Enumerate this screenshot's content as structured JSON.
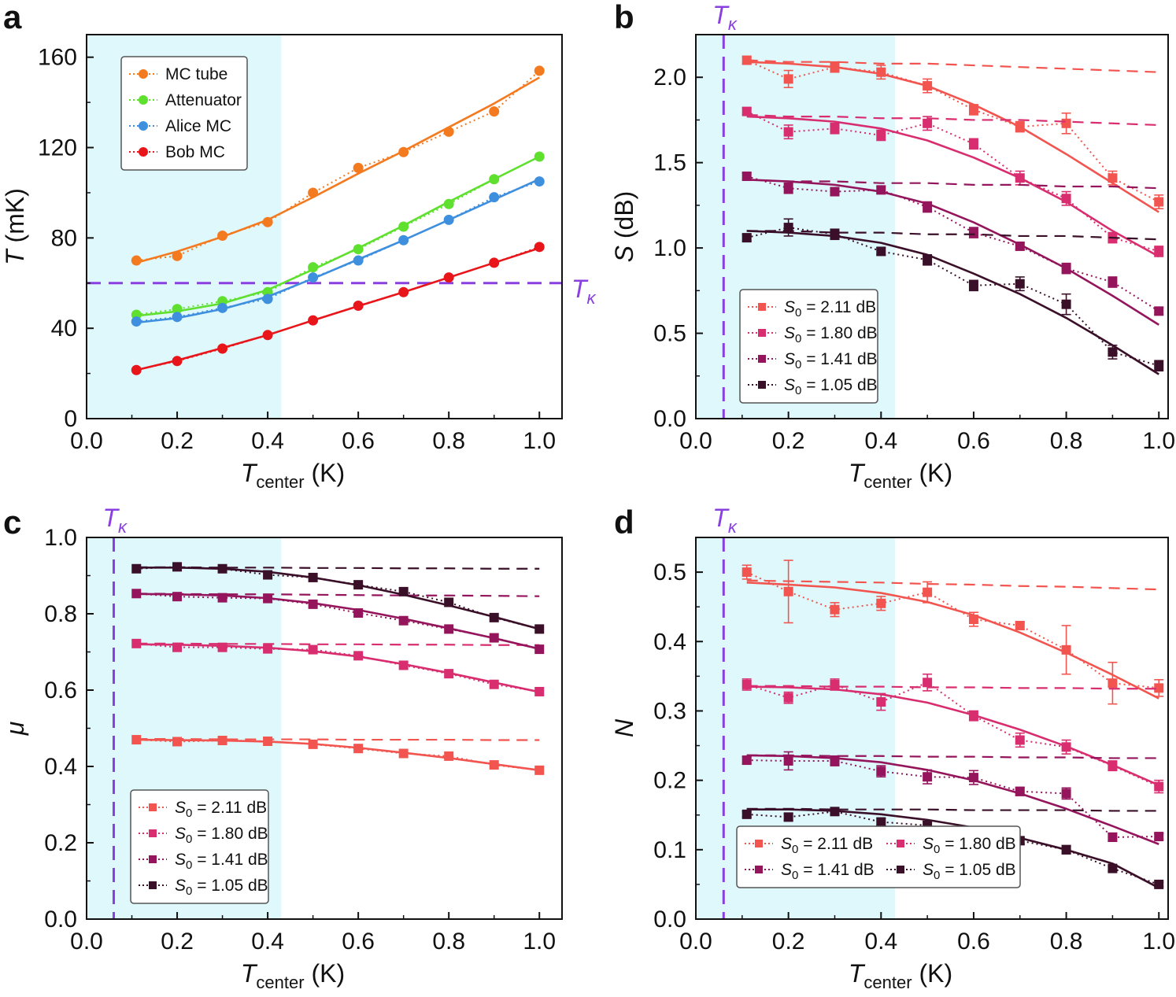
{
  "colors": {
    "shade": "#dff8fc",
    "tk_line": "#8a3fe0",
    "orange": "#f47a20",
    "green": "#5fe02f",
    "blue": "#3f8fdf",
    "red": "#e8161a",
    "s211": "#f2554f",
    "s180": "#d82d6e",
    "s141": "#94155c",
    "s105": "#3a0f28"
  },
  "tk_label": "T",
  "tk_sub": "κ",
  "chart_data": [
    {
      "id": "a",
      "type": "line",
      "panel_label": "a",
      "xlabel": "T",
      "xlabel_sub": "center",
      "xlabel_unit": " (K)",
      "ylabel": "T",
      "ylabel_unit": " (mK)",
      "xlim": [
        0,
        1.05
      ],
      "ylim": [
        0,
        170
      ],
      "xticks": [
        "0.0",
        "0.2",
        "0.4",
        "0.6",
        "0.8",
        "1.0"
      ],
      "xtick_values": [
        0,
        0.2,
        0.4,
        0.6,
        0.8,
        1.0
      ],
      "yticks": [
        "0",
        "40",
        "80",
        "120",
        "160"
      ],
      "ytick_values": [
        0,
        40,
        80,
        120,
        160
      ],
      "shade_x": [
        0,
        0.43
      ],
      "tk_orientation": "horizontal",
      "tk_value": 60,
      "x": [
        0.11,
        0.2,
        0.3,
        0.4,
        0.5,
        0.6,
        0.7,
        0.8,
        0.9,
        1.0
      ],
      "series": [
        {
          "name": "MC tube",
          "color_key": "orange",
          "marker": "circle",
          "values": [
            70,
            72,
            81,
            87,
            100,
            111,
            118,
            127,
            136,
            154
          ],
          "fit": [
            69,
            74,
            80.5,
            88,
            98,
            108.5,
            118.5,
            129,
            139.5,
            151
          ]
        },
        {
          "name": "Attenuator",
          "color_key": "green",
          "marker": "circle",
          "values": [
            46,
            48.5,
            52,
            56,
            67,
            75,
            85,
            95,
            106,
            116
          ],
          "fit": [
            45.5,
            47.5,
            51,
            57,
            66,
            75.5,
            85.5,
            96,
            106,
            116
          ]
        },
        {
          "name": "Alice MC",
          "color_key": "blue",
          "marker": "circle",
          "values": [
            43,
            45,
            49,
            53,
            62.5,
            70,
            79,
            88,
            98,
            105
          ],
          "fit": [
            42.5,
            44.5,
            48.5,
            54,
            62,
            70.5,
            79,
            88,
            97,
            106
          ]
        },
        {
          "name": "Bob MC",
          "color_key": "red",
          "marker": "circle",
          "values": [
            21.5,
            25.5,
            31,
            37,
            43.5,
            50,
            56,
            62.5,
            69,
            76
          ],
          "fit": [
            21.5,
            25.8,
            31.3,
            37,
            43.5,
            49.8,
            56,
            62.5,
            69,
            75.5
          ]
        }
      ],
      "legend": {
        "placement": "top-left",
        "columns": 1,
        "labels": [
          "MC tube",
          "Attenuator",
          "Alice MC",
          "Bob MC"
        ]
      }
    },
    {
      "id": "b",
      "type": "line",
      "panel_label": "b",
      "xlabel": "T",
      "xlabel_sub": "center",
      "xlabel_unit": " (K)",
      "ylabel": "S",
      "ylabel_unit": " (dB)",
      "xlim": [
        0,
        1.02
      ],
      "ylim": [
        0,
        2.25
      ],
      "xticks": [
        "0.0",
        "0.2",
        "0.4",
        "0.6",
        "0.8",
        "1.0"
      ],
      "xtick_values": [
        0,
        0.2,
        0.4,
        0.6,
        0.8,
        1.0
      ],
      "yticks": [
        "0.0",
        "0.5",
        "1.0",
        "1.5",
        "2.0"
      ],
      "ytick_values": [
        0,
        0.5,
        1.0,
        1.5,
        2.0
      ],
      "shade_x": [
        0,
        0.43
      ],
      "tk_orientation": "vertical",
      "tk_value": 0.06,
      "x": [
        0.11,
        0.2,
        0.3,
        0.4,
        0.5,
        0.6,
        0.7,
        0.8,
        0.9,
        1.0
      ],
      "series": [
        {
          "name": "S0 = 2.11 dB",
          "color_key": "s211",
          "marker": "square",
          "values": [
            2.1,
            1.99,
            2.06,
            2.03,
            1.95,
            1.81,
            1.71,
            1.73,
            1.41,
            1.27
          ],
          "errors": [
            0.02,
            0.05,
            0.03,
            0.04,
            0.04,
            0.03,
            0.03,
            0.06,
            0.04,
            0.04
          ],
          "fit": [
            2.09,
            2.08,
            2.06,
            2.02,
            1.95,
            1.84,
            1.71,
            1.55,
            1.38,
            1.21
          ],
          "dashed": [
            2.1,
            2.09,
            2.09,
            2.08,
            2.08,
            2.07,
            2.06,
            2.05,
            2.04,
            2.03
          ]
        },
        {
          "name": "S0 = 1.80 dB",
          "color_key": "s180",
          "marker": "square",
          "values": [
            1.8,
            1.68,
            1.7,
            1.66,
            1.73,
            1.61,
            1.41,
            1.29,
            1.06,
            0.98
          ],
          "errors": [
            0.02,
            0.04,
            0.03,
            0.03,
            0.04,
            0.03,
            0.04,
            0.04,
            0.03,
            0.03
          ],
          "fit": [
            1.77,
            1.76,
            1.74,
            1.7,
            1.63,
            1.53,
            1.41,
            1.27,
            1.1,
            0.95
          ],
          "dashed": [
            1.78,
            1.77,
            1.77,
            1.76,
            1.76,
            1.75,
            1.75,
            1.74,
            1.73,
            1.72
          ]
        },
        {
          "name": "S0 = 1.41 dB",
          "color_key": "s141",
          "marker": "square",
          "values": [
            1.42,
            1.35,
            1.33,
            1.34,
            1.24,
            1.09,
            1.01,
            0.88,
            0.8,
            0.63
          ],
          "errors": [
            0.02,
            0.03,
            0.02,
            0.02,
            0.03,
            0.03,
            0.02,
            0.03,
            0.03,
            0.02
          ],
          "fit": [
            1.4,
            1.39,
            1.37,
            1.33,
            1.26,
            1.15,
            1.02,
            0.88,
            0.72,
            0.55
          ],
          "dashed": [
            1.4,
            1.39,
            1.39,
            1.38,
            1.38,
            1.37,
            1.37,
            1.36,
            1.36,
            1.35
          ]
        },
        {
          "name": "S0 = 1.05 dB",
          "color_key": "s105",
          "marker": "square",
          "values": [
            1.06,
            1.12,
            1.08,
            0.98,
            0.93,
            0.78,
            0.79,
            0.67,
            0.39,
            0.31
          ],
          "errors": [
            0.02,
            0.05,
            0.03,
            0.02,
            0.03,
            0.03,
            0.04,
            0.06,
            0.04,
            0.03
          ],
          "fit": [
            1.1,
            1.09,
            1.07,
            1.03,
            0.96,
            0.85,
            0.73,
            0.59,
            0.43,
            0.26
          ],
          "dashed": [
            1.1,
            1.1,
            1.09,
            1.09,
            1.08,
            1.08,
            1.07,
            1.07,
            1.06,
            1.05
          ]
        }
      ],
      "legend": {
        "placement": "bottom-left",
        "columns": 1,
        "labels": [
          "S0 = 2.11 dB",
          "S0 = 1.80 dB",
          "S0 = 1.41 dB",
          "S0 = 1.05 dB"
        ]
      }
    },
    {
      "id": "c",
      "type": "line",
      "panel_label": "c",
      "xlabel": "T",
      "xlabel_sub": "center",
      "xlabel_unit": " (K)",
      "ylabel": "μ",
      "ylabel_unit": "",
      "xlim": [
        0,
        1.05
      ],
      "ylim": [
        0,
        1.0
      ],
      "xticks": [
        "0.0",
        "0.2",
        "0.4",
        "0.6",
        "0.8",
        "1.0"
      ],
      "xtick_values": [
        0,
        0.2,
        0.4,
        0.6,
        0.8,
        1.0
      ],
      "yticks": [
        "0.0",
        "0.2",
        "0.4",
        "0.6",
        "0.8",
        "1.0"
      ],
      "ytick_values": [
        0,
        0.2,
        0.4,
        0.6,
        0.8,
        1.0
      ],
      "shade_x": [
        0,
        0.43
      ],
      "tk_orientation": "vertical",
      "tk_value": 0.06,
      "x": [
        0.11,
        0.2,
        0.3,
        0.4,
        0.5,
        0.6,
        0.7,
        0.8,
        0.9,
        1.0
      ],
      "series": [
        {
          "name": "S0 = 2.11 dB",
          "color_key": "s211",
          "marker": "square",
          "values": [
            0.47,
            0.465,
            0.468,
            0.466,
            0.458,
            0.447,
            0.434,
            0.427,
            0.404,
            0.39
          ],
          "fit": [
            0.47,
            0.469,
            0.468,
            0.465,
            0.459,
            0.449,
            0.436,
            0.422,
            0.406,
            0.39
          ],
          "dashed": [
            0.472,
            0.472,
            0.471,
            0.471,
            0.471,
            0.47,
            0.47,
            0.47,
            0.469,
            0.469
          ]
        },
        {
          "name": "S0 = 1.80 dB",
          "color_key": "s180",
          "marker": "square",
          "values": [
            0.722,
            0.712,
            0.712,
            0.708,
            0.706,
            0.69,
            0.665,
            0.643,
            0.615,
            0.596
          ],
          "fit": [
            0.72,
            0.719,
            0.716,
            0.711,
            0.702,
            0.688,
            0.668,
            0.645,
            0.62,
            0.595
          ],
          "dashed": [
            0.722,
            0.722,
            0.721,
            0.721,
            0.72,
            0.72,
            0.719,
            0.719,
            0.718,
            0.718
          ]
        },
        {
          "name": "S0 = 1.41 dB",
          "color_key": "s141",
          "marker": "square",
          "values": [
            0.853,
            0.845,
            0.842,
            0.84,
            0.825,
            0.802,
            0.782,
            0.76,
            0.737,
            0.707
          ],
          "fit": [
            0.852,
            0.851,
            0.848,
            0.841,
            0.828,
            0.81,
            0.787,
            0.762,
            0.736,
            0.708
          ],
          "dashed": [
            0.853,
            0.852,
            0.851,
            0.851,
            0.85,
            0.849,
            0.848,
            0.848,
            0.847,
            0.846
          ]
        },
        {
          "name": "S0 = 1.05 dB",
          "color_key": "s105",
          "marker": "square",
          "values": [
            0.918,
            0.923,
            0.918,
            0.902,
            0.895,
            0.876,
            0.858,
            0.83,
            0.79,
            0.76
          ],
          "fit": [
            0.921,
            0.921,
            0.918,
            0.91,
            0.895,
            0.875,
            0.85,
            0.822,
            0.792,
            0.76
          ],
          "dashed": [
            0.922,
            0.922,
            0.921,
            0.921,
            0.92,
            0.92,
            0.919,
            0.919,
            0.918,
            0.918
          ]
        }
      ],
      "legend": {
        "placement": "bottom-left",
        "columns": 1,
        "labels": [
          "S0 = 2.11 dB",
          "S0 = 1.80 dB",
          "S0 = 1.41 dB",
          "S0 = 1.05 dB"
        ]
      }
    },
    {
      "id": "d",
      "type": "line",
      "panel_label": "d",
      "xlabel": "T",
      "xlabel_sub": "center",
      "xlabel_unit": " (K)",
      "ylabel": "N",
      "ylabel_unit": "",
      "xlim": [
        0,
        1.02
      ],
      "ylim": [
        0,
        0.55
      ],
      "xticks": [
        "0.0",
        "0.2",
        "0.4",
        "0.6",
        "0.8",
        "1.0"
      ],
      "xtick_values": [
        0,
        0.2,
        0.4,
        0.6,
        0.8,
        1.0
      ],
      "yticks": [
        "0.0",
        "0.1",
        "0.2",
        "0.3",
        "0.4",
        "0.5"
      ],
      "ytick_values": [
        0,
        0.1,
        0.2,
        0.3,
        0.4,
        0.5
      ],
      "shade_x": [
        0,
        0.43
      ],
      "tk_orientation": "vertical",
      "tk_value": 0.06,
      "x": [
        0.11,
        0.2,
        0.3,
        0.4,
        0.5,
        0.6,
        0.7,
        0.8,
        0.9,
        1.0
      ],
      "series": [
        {
          "name": "S0 = 2.11 dB",
          "color_key": "s211",
          "marker": "square",
          "values": [
            0.5,
            0.472,
            0.446,
            0.455,
            0.471,
            0.432,
            0.423,
            0.388,
            0.34,
            0.333
          ],
          "errors": [
            0.01,
            0.045,
            0.01,
            0.01,
            0.015,
            0.01,
            0.005,
            0.035,
            0.03,
            0.012
          ],
          "fit": [
            0.485,
            0.482,
            0.478,
            0.47,
            0.457,
            0.438,
            0.413,
            0.384,
            0.352,
            0.318
          ],
          "dashed": [
            0.488,
            0.487,
            0.486,
            0.485,
            0.483,
            0.482,
            0.48,
            0.479,
            0.477,
            0.475
          ]
        },
        {
          "name": "S0 = 1.80 dB",
          "color_key": "s180",
          "marker": "square",
          "values": [
            0.338,
            0.319,
            0.338,
            0.313,
            0.341,
            0.293,
            0.258,
            0.248,
            0.221,
            0.191
          ],
          "errors": [
            0.008,
            0.008,
            0.008,
            0.012,
            0.012,
            0.007,
            0.01,
            0.01,
            0.007,
            0.009
          ],
          "fit": [
            0.335,
            0.334,
            0.331,
            0.324,
            0.312,
            0.294,
            0.273,
            0.249,
            0.222,
            0.193
          ],
          "dashed": [
            0.336,
            0.336,
            0.335,
            0.335,
            0.334,
            0.334,
            0.333,
            0.333,
            0.332,
            0.332
          ]
        },
        {
          "name": "S0 = 1.41 dB",
          "color_key": "s141",
          "marker": "square",
          "values": [
            0.229,
            0.228,
            0.228,
            0.213,
            0.205,
            0.204,
            0.184,
            0.181,
            0.118,
            0.119
          ],
          "errors": [
            0.005,
            0.013,
            0.007,
            0.008,
            0.01,
            0.01,
            0.006,
            0.008,
            0.006,
            0.004
          ],
          "fit": [
            0.236,
            0.235,
            0.232,
            0.226,
            0.215,
            0.2,
            0.181,
            0.159,
            0.134,
            0.108
          ],
          "dashed": [
            0.236,
            0.236,
            0.235,
            0.235,
            0.234,
            0.234,
            0.233,
            0.233,
            0.232,
            0.232
          ]
        },
        {
          "name": "S0 = 1.05 dB",
          "color_key": "s105",
          "marker": "square",
          "values": [
            0.151,
            0.147,
            0.155,
            0.14,
            0.135,
            0.125,
            0.113,
            0.1,
            0.073,
            0.05
          ],
          "errors": [
            0.004,
            0.005,
            0.004,
            0.005,
            0.006,
            0.004,
            0.005,
            0.006,
            0.004,
            0.003
          ],
          "fit": [
            0.158,
            0.158,
            0.156,
            0.151,
            0.143,
            0.132,
            0.117,
            0.1,
            0.08,
            0.045
          ],
          "dashed": [
            0.159,
            0.159,
            0.158,
            0.158,
            0.158,
            0.157,
            0.157,
            0.157,
            0.156,
            0.156
          ]
        }
      ],
      "legend": {
        "placement": "bottom-left",
        "columns": 2,
        "labels": [
          "S0 = 2.11 dB",
          "S0 = 1.80 dB",
          "S0 = 1.41 dB",
          "S0 = 1.05 dB"
        ]
      }
    }
  ]
}
